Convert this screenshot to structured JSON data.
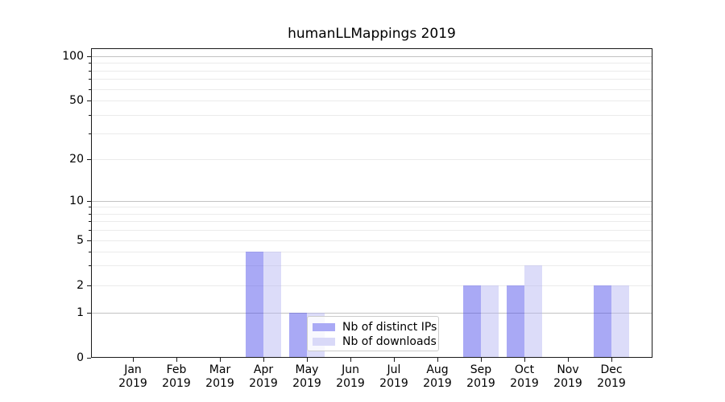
{
  "title": "humanLLMappings 2019",
  "chart_data": {
    "type": "bar",
    "title": "humanLLMappings 2019",
    "categories": [
      "Jan",
      "Feb",
      "Mar",
      "Apr",
      "May",
      "Jun",
      "Jul",
      "Aug",
      "Sep",
      "Oct",
      "Nov",
      "Dec"
    ],
    "year_label": "2019",
    "series": [
      {
        "name": "Nb of distinct IPs",
        "values": [
          0,
          0,
          0,
          4,
          1,
          0,
          0,
          0,
          2,
          2,
          0,
          2
        ],
        "bar_color": "rgba(76,76,235,0.48)",
        "legend_color": "#a9a9f5"
      },
      {
        "name": "Nb of downloads",
        "values": [
          0,
          0,
          0,
          4,
          1,
          0,
          0,
          0,
          2,
          3,
          0,
          2
        ],
        "bar_color": "rgba(178,178,242,0.46)",
        "legend_color": "#d9d9f8"
      }
    ],
    "xlabel": "",
    "ylabel": "",
    "yscale": "symlog",
    "yticks": [
      0,
      1,
      2,
      5,
      10,
      20,
      50,
      100
    ],
    "ylim": [
      0,
      130
    ],
    "grid": {
      "major": [
        1,
        10,
        100
      ],
      "minor": [
        2,
        3,
        4,
        5,
        6,
        7,
        8,
        9,
        20,
        30,
        40,
        50,
        60,
        70,
        80,
        90
      ]
    },
    "legend": {
      "position": "lower center",
      "entries": [
        "Nb of distinct IPs",
        "Nb of downloads"
      ]
    }
  }
}
